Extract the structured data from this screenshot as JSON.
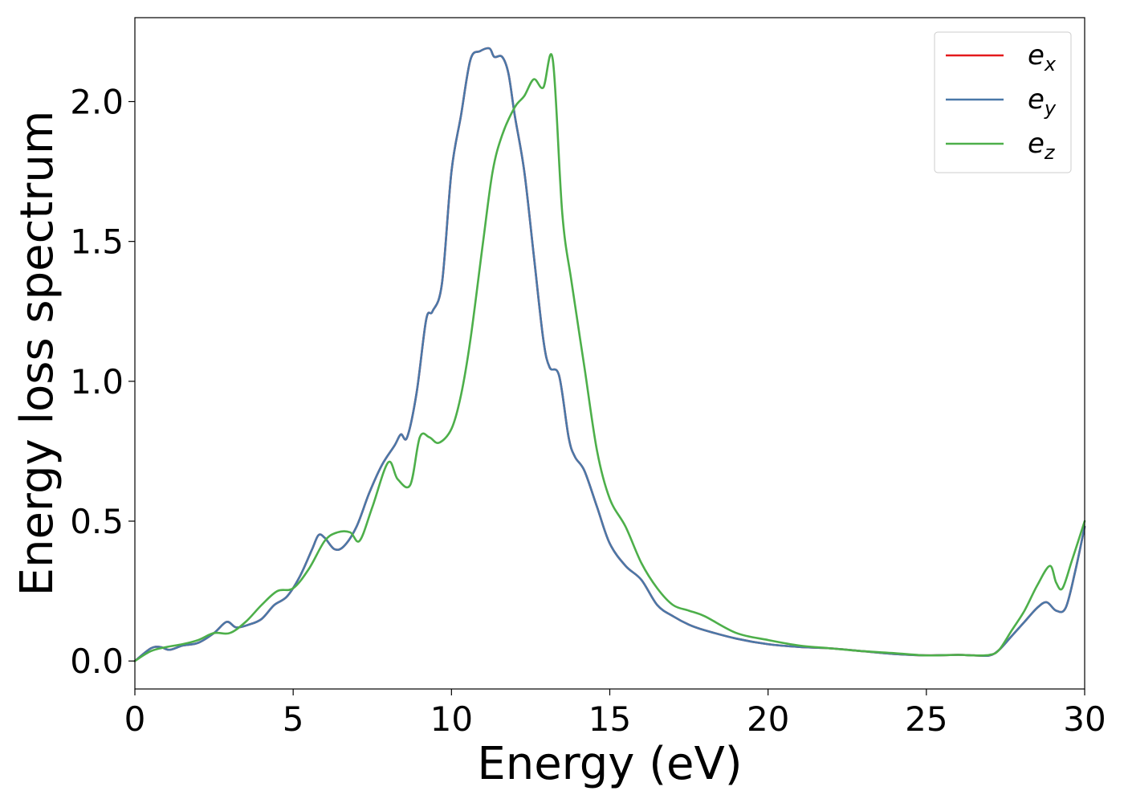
{
  "chart_data": {
    "type": "line",
    "title": "",
    "xlabel": "Energy (eV)",
    "ylabel": "Energy loss spectrum",
    "xlim": [
      0,
      30
    ],
    "ylim": [
      -0.1,
      2.3
    ],
    "xticks": [
      0,
      5,
      10,
      15,
      20,
      25,
      30
    ],
    "xtick_labels": [
      "0",
      "5",
      "10",
      "15",
      "20",
      "25",
      "30"
    ],
    "yticks": [
      0.0,
      0.5,
      1.0,
      1.5,
      2.0
    ],
    "ytick_labels": [
      "0.0",
      "0.5",
      "1.0",
      "1.5",
      "2.0"
    ],
    "grid": false,
    "legend": {
      "placement": "top-right"
    },
    "series": [
      {
        "name": "e",
        "name_sub": "x",
        "color": "#e41a1c",
        "x": [
          0,
          0.5,
          0.8,
          1.1,
          1.5,
          2,
          2.5,
          2.9,
          3.2,
          3.6,
          4,
          4.4,
          4.8,
          5.2,
          5.6,
          5.8,
          6,
          6.3,
          6.6,
          7,
          7.4,
          7.8,
          8.2,
          8.4,
          8.6,
          8.9,
          9.2,
          9.4,
          9.7,
          10,
          10.3,
          10.6,
          10.9,
          11.2,
          11.35,
          11.6,
          11.8,
          12,
          12.3,
          12.6,
          12.9,
          13.1,
          13.4,
          13.7,
          13.9,
          14.2,
          14.6,
          15,
          15.5,
          16,
          16.5,
          17,
          17.5,
          18,
          19,
          20,
          21,
          22,
          23,
          24,
          25,
          26,
          26.5,
          27,
          27.3,
          27.7,
          28.1,
          28.5,
          28.8,
          29.1,
          29.4,
          29.7,
          30
        ],
        "values": [
          0,
          0.045,
          0.05,
          0.04,
          0.055,
          0.065,
          0.1,
          0.14,
          0.12,
          0.13,
          0.15,
          0.2,
          0.23,
          0.3,
          0.4,
          0.45,
          0.44,
          0.4,
          0.41,
          0.48,
          0.6,
          0.7,
          0.77,
          0.81,
          0.8,
          0.96,
          1.22,
          1.25,
          1.35,
          1.75,
          1.95,
          2.15,
          2.18,
          2.19,
          2.16,
          2.16,
          2.1,
          1.95,
          1.75,
          1.45,
          1.15,
          1.05,
          1.02,
          0.8,
          0.73,
          0.68,
          0.55,
          0.42,
          0.34,
          0.29,
          0.2,
          0.16,
          0.13,
          0.11,
          0.08,
          0.06,
          0.05,
          0.045,
          0.035,
          0.025,
          0.02,
          0.022,
          0.02,
          0.02,
          0.04,
          0.09,
          0.14,
          0.19,
          0.21,
          0.18,
          0.19,
          0.32,
          0.48
        ]
      },
      {
        "name": "e",
        "name_sub": "y",
        "color": "#4a78a8",
        "x": [
          0,
          0.5,
          0.8,
          1.1,
          1.5,
          2,
          2.5,
          2.9,
          3.2,
          3.6,
          4,
          4.4,
          4.8,
          5.2,
          5.6,
          5.8,
          6,
          6.3,
          6.6,
          7,
          7.4,
          7.8,
          8.2,
          8.4,
          8.6,
          8.9,
          9.2,
          9.4,
          9.7,
          10,
          10.3,
          10.6,
          10.9,
          11.2,
          11.35,
          11.6,
          11.8,
          12,
          12.3,
          12.6,
          12.9,
          13.1,
          13.4,
          13.7,
          13.9,
          14.2,
          14.6,
          15,
          15.5,
          16,
          16.5,
          17,
          17.5,
          18,
          19,
          20,
          21,
          22,
          23,
          24,
          25,
          26,
          26.5,
          27,
          27.3,
          27.7,
          28.1,
          28.5,
          28.8,
          29.1,
          29.4,
          29.7,
          30
        ],
        "values": [
          0,
          0.045,
          0.05,
          0.04,
          0.055,
          0.065,
          0.1,
          0.14,
          0.12,
          0.13,
          0.15,
          0.2,
          0.23,
          0.3,
          0.4,
          0.45,
          0.44,
          0.4,
          0.41,
          0.48,
          0.6,
          0.7,
          0.77,
          0.81,
          0.8,
          0.96,
          1.22,
          1.25,
          1.35,
          1.75,
          1.95,
          2.15,
          2.18,
          2.19,
          2.16,
          2.16,
          2.1,
          1.95,
          1.75,
          1.45,
          1.15,
          1.05,
          1.02,
          0.8,
          0.73,
          0.68,
          0.55,
          0.42,
          0.34,
          0.29,
          0.2,
          0.16,
          0.13,
          0.11,
          0.08,
          0.06,
          0.05,
          0.045,
          0.035,
          0.025,
          0.02,
          0.022,
          0.02,
          0.02,
          0.04,
          0.09,
          0.14,
          0.19,
          0.21,
          0.18,
          0.19,
          0.32,
          0.48
        ]
      },
      {
        "name": "e",
        "name_sub": "z",
        "color": "#4daf4a",
        "x": [
          0,
          0.5,
          1,
          1.5,
          2,
          2.5,
          3,
          3.5,
          4,
          4.5,
          5,
          5.5,
          6,
          6.4,
          6.8,
          7.1,
          7.5,
          8,
          8.3,
          8.7,
          9,
          9.3,
          9.6,
          10,
          10.3,
          10.6,
          11,
          11.3,
          11.6,
          12,
          12.3,
          12.6,
          12.9,
          13.2,
          13.5,
          13.8,
          14.2,
          14.6,
          15,
          15.5,
          16,
          16.5,
          17,
          17.5,
          18,
          19,
          20,
          21,
          22,
          23,
          24,
          25,
          26,
          26.5,
          27,
          27.3,
          27.7,
          28.1,
          28.5,
          28.9,
          29.1,
          29.3,
          29.6,
          30
        ],
        "values": [
          0,
          0.035,
          0.05,
          0.06,
          0.075,
          0.1,
          0.1,
          0.14,
          0.2,
          0.25,
          0.26,
          0.33,
          0.43,
          0.46,
          0.46,
          0.43,
          0.55,
          0.71,
          0.65,
          0.63,
          0.8,
          0.8,
          0.78,
          0.83,
          0.95,
          1.15,
          1.5,
          1.75,
          1.88,
          1.98,
          2.02,
          2.08,
          2.05,
          2.15,
          1.6,
          1.35,
          1.05,
          0.75,
          0.58,
          0.48,
          0.35,
          0.26,
          0.2,
          0.18,
          0.16,
          0.1,
          0.075,
          0.055,
          0.045,
          0.035,
          0.028,
          0.02,
          0.022,
          0.02,
          0.022,
          0.04,
          0.11,
          0.18,
          0.27,
          0.34,
          0.28,
          0.26,
          0.36,
          0.5
        ]
      }
    ]
  }
}
